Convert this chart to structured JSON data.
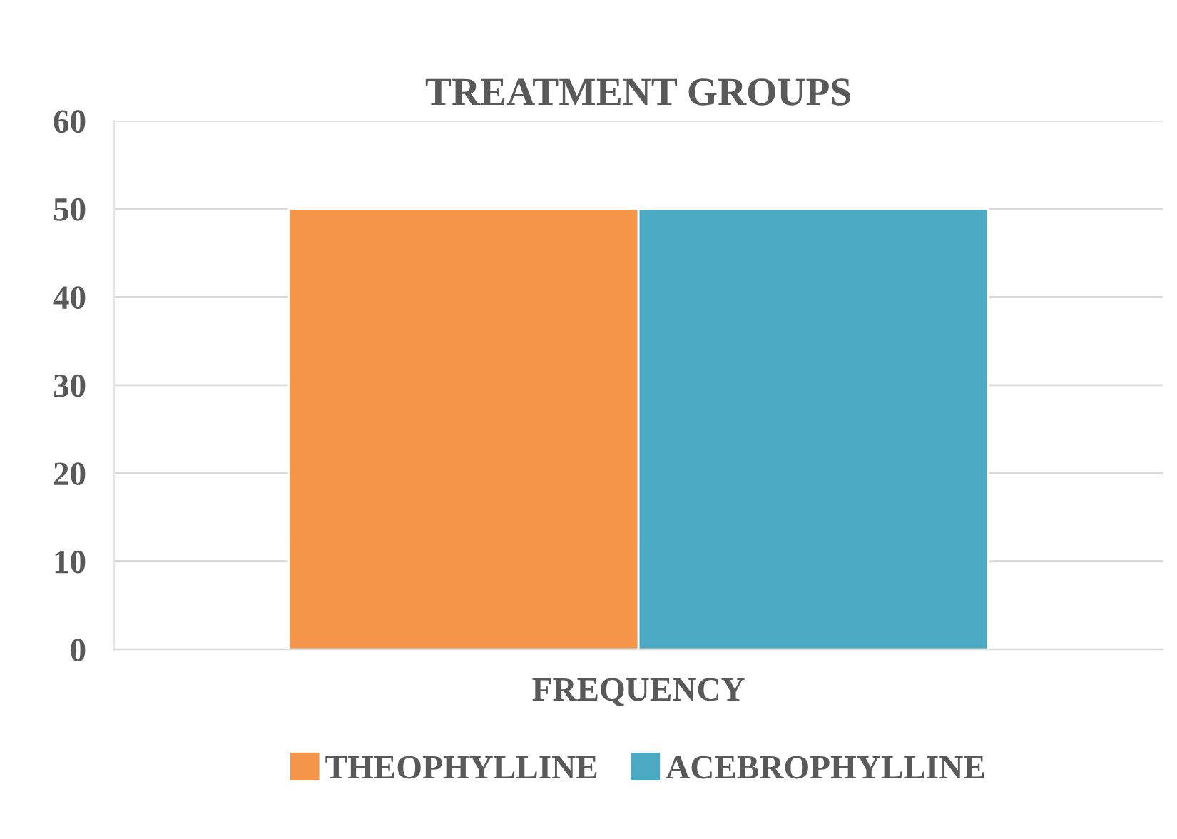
{
  "chart_data": {
    "type": "bar",
    "title": "TREATMENT GROUPS",
    "categories": [
      "FREQUENCY"
    ],
    "series": [
      {
        "name": "THEOPHYLLINE",
        "color": "#f5954a",
        "values": [
          50
        ]
      },
      {
        "name": "ACEBROPHYLLINE",
        "color": "#4aaac4",
        "values": [
          50
        ]
      }
    ],
    "ylim": [
      0,
      60
    ],
    "yticks": [
      0,
      10,
      20,
      30,
      40,
      50,
      60
    ],
    "grid": "y",
    "legend": "bottom"
  }
}
